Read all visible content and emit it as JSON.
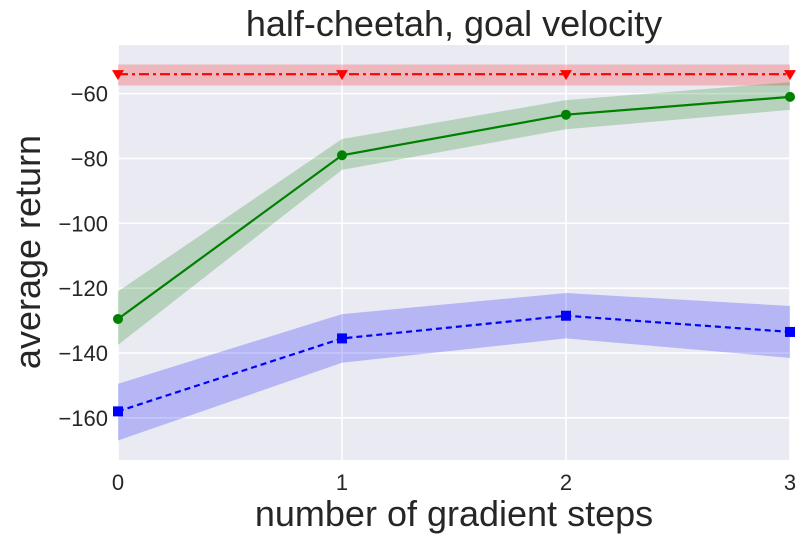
{
  "chart_data": {
    "type": "line",
    "title": "half-cheetah, goal velocity",
    "xlabel": "number of gradient steps",
    "ylabel": "average return",
    "x": [
      0,
      1,
      2,
      3
    ],
    "xlim": [
      0,
      3
    ],
    "ylim": [
      -173,
      -45
    ],
    "xticks": [
      0,
      1,
      2,
      3
    ],
    "yticks": [
      -160,
      -140,
      -120,
      -100,
      -80,
      -60
    ],
    "grid": true,
    "background": "#EAEAF2",
    "series": [
      {
        "color": "#FF0000",
        "linestyle": "dashdot",
        "marker": "triangle-down",
        "values": [
          -54,
          -54,
          -54,
          -54
        ],
        "band_lower": [
          -57.5,
          -57.5,
          -57.5,
          -57.5
        ],
        "band_upper": [
          -51,
          -51,
          -51,
          -51
        ]
      },
      {
        "color": "#008000",
        "linestyle": "solid",
        "marker": "circle",
        "values": [
          -129.5,
          -79,
          -66.5,
          -61
        ],
        "band_lower": [
          -137.5,
          -83.5,
          -71,
          -65
        ],
        "band_upper": [
          -121,
          -74,
          -62,
          -56.5
        ]
      },
      {
        "color": "#0000FF",
        "linestyle": "dashed",
        "marker": "square",
        "values": [
          -158,
          -135.5,
          -128.5,
          -133.5
        ],
        "band_lower": [
          -167,
          -143,
          -135.5,
          -141.5
        ],
        "band_upper": [
          -149.5,
          -128,
          -121.5,
          -125.5
        ]
      }
    ]
  }
}
